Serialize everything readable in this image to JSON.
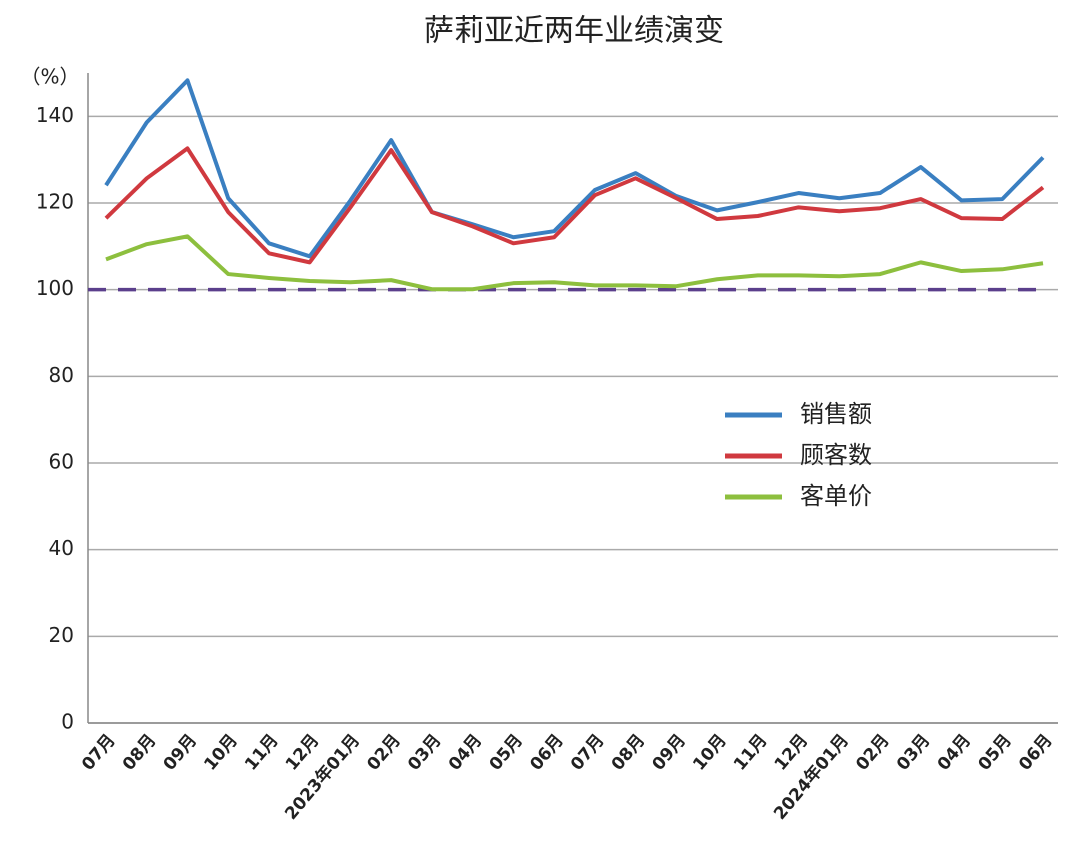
{
  "chart_data": {
    "type": "line",
    "title": "萨莉亚近两年业绩演变",
    "y_label": "（%）",
    "categories": [
      "07月",
      "08月",
      "09月",
      "10月",
      "11月",
      "12月",
      "2023年01月",
      "02月",
      "03月",
      "04月",
      "05月",
      "06月",
      "07月",
      "08月",
      "09月",
      "10月",
      "11月",
      "12月",
      "2024年01月",
      "02月",
      "03月",
      "04月",
      "05月",
      "06月"
    ],
    "series": [
      {
        "name": "销售额",
        "color": "#3a7fc1",
        "values": [
          124.1,
          138.6,
          148.3,
          121.1,
          110.7,
          107.7,
          120.6,
          134.5,
          117.9,
          115.1,
          112.1,
          113.5,
          123.0,
          126.9,
          121.6,
          118.3,
          120.2,
          122.3,
          121.1,
          122.3,
          128.3,
          120.6,
          120.9,
          130.5
        ]
      },
      {
        "name": "顾客数",
        "color": "#d0393f",
        "values": [
          116.5,
          125.7,
          132.6,
          117.9,
          108.4,
          106.3,
          119.0,
          132.2,
          117.9,
          114.6,
          110.7,
          112.1,
          121.8,
          125.7,
          121.1,
          116.3,
          117.0,
          119.0,
          118.1,
          118.8,
          120.9,
          116.5,
          116.3,
          123.6
        ]
      },
      {
        "name": "客单价",
        "color": "#8dbf3e",
        "values": [
          107.0,
          110.5,
          112.3,
          103.6,
          102.7,
          102.0,
          101.7,
          102.2,
          100.1,
          100.1,
          101.5,
          101.7,
          101.0,
          101.0,
          100.8,
          102.4,
          103.3,
          103.3,
          103.1,
          103.6,
          106.3,
          104.3,
          104.7,
          106.1
        ]
      }
    ],
    "reference_line": 100,
    "reference_color": "#5b3f8c",
    "ylim": [
      0,
      150
    ],
    "yticks": [
      0,
      20,
      40,
      60,
      80,
      100,
      120,
      140
    ],
    "grid": true
  }
}
